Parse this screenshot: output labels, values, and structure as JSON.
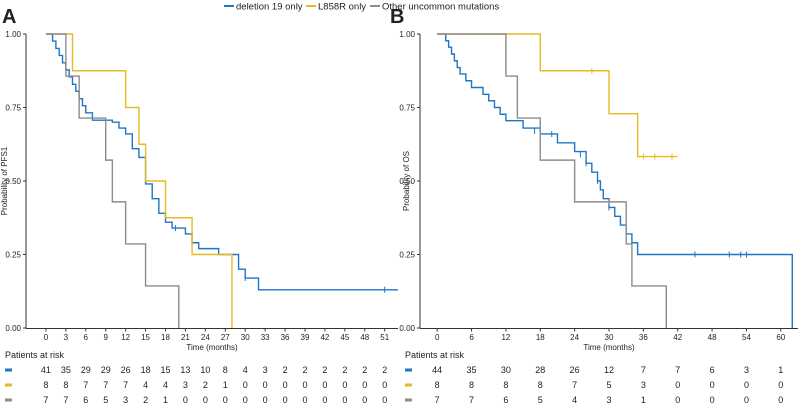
{
  "colors": {
    "deletion19": "#1f77c4",
    "l858r": "#e8b923",
    "other": "#8c8c8c",
    "axis": "#333333",
    "text": "#222222"
  },
  "legend": [
    {
      "label": "deletion 19 only",
      "color": "#1f77c4"
    },
    {
      "label": "L858R only",
      "color": "#e8b923"
    },
    {
      "label": "Other uncommon mutations",
      "color": "#8c8c8c"
    }
  ],
  "chart_data": [
    {
      "panel": "A",
      "type": "line",
      "subtype": "kaplan-meier step",
      "xlabel": "Time (months)",
      "ylabel": "Probability of PFS1",
      "xlim": [
        -3,
        53
      ],
      "ylim": [
        0,
        1
      ],
      "xticks": [
        0,
        3,
        6,
        9,
        12,
        15,
        18,
        21,
        24,
        27,
        30,
        33,
        36,
        39,
        42,
        45,
        48,
        51
      ],
      "yticks": [
        0.0,
        0.25,
        0.5,
        0.75,
        1.0
      ],
      "ytick_labels": [
        "0.00",
        "0.25",
        "0.50",
        "0.75",
        "1.00"
      ],
      "series": [
        {
          "name": "deletion 19 only",
          "color": "#1f77c4",
          "steps": [
            [
              0,
              1.0
            ],
            [
              1,
              0.976
            ],
            [
              1.5,
              0.951
            ],
            [
              2,
              0.927
            ],
            [
              2.5,
              0.902
            ],
            [
              3,
              0.878
            ],
            [
              3.5,
              0.854
            ],
            [
              4,
              0.829
            ],
            [
              4.5,
              0.805
            ],
            [
              5,
              0.78
            ],
            [
              5.5,
              0.756
            ],
            [
              6,
              0.732
            ],
            [
              7,
              0.707
            ],
            [
              10,
              0.7
            ],
            [
              11,
              0.68
            ],
            [
              12,
              0.66
            ],
            [
              13,
              0.61
            ],
            [
              14,
              0.58
            ],
            [
              15,
              0.49
            ],
            [
              16,
              0.44
            ],
            [
              17,
              0.39
            ],
            [
              18,
              0.36
            ],
            [
              19,
              0.34
            ],
            [
              21,
              0.32
            ],
            [
              22,
              0.29
            ],
            [
              23,
              0.27
            ],
            [
              26,
              0.25
            ],
            [
              29,
              0.2
            ],
            [
              30,
              0.17
            ],
            [
              32,
              0.13
            ],
            [
              53,
              0.13
            ]
          ],
          "censor_marks": [
            [
              19.5,
              0.34
            ],
            [
              30,
              0.17
            ],
            [
              51,
              0.13
            ]
          ]
        },
        {
          "name": "L858R only",
          "color": "#e8b923",
          "steps": [
            [
              0,
              1.0
            ],
            [
              4,
              0.875
            ],
            [
              12,
              0.75
            ],
            [
              14,
              0.625
            ],
            [
              15,
              0.5
            ],
            [
              18,
              0.375
            ],
            [
              22,
              0.25
            ],
            [
              28,
              0.0
            ]
          ],
          "censor_marks": []
        },
        {
          "name": "Other uncommon mutations",
          "color": "#8c8c8c",
          "steps": [
            [
              0,
              1.0
            ],
            [
              3,
              0.857
            ],
            [
              5,
              0.714
            ],
            [
              9,
              0.571
            ],
            [
              10,
              0.429
            ],
            [
              12,
              0.286
            ],
            [
              15,
              0.143
            ],
            [
              20,
              0.0
            ]
          ],
          "censor_marks": []
        }
      ],
      "risk_table": {
        "title": "Patients at risk",
        "rows": [
          {
            "color": "#1f77c4",
            "values": [
              41,
              35,
              29,
              29,
              26,
              18,
              15,
              13,
              10,
              8,
              4,
              3,
              2,
              2,
              2,
              2,
              2,
              2
            ]
          },
          {
            "color": "#e8b923",
            "values": [
              8,
              8,
              7,
              7,
              7,
              4,
              4,
              3,
              2,
              1,
              0,
              0,
              0,
              0,
              0,
              0,
              0,
              0
            ]
          },
          {
            "color": "#8c8c8c",
            "values": [
              7,
              7,
              6,
              5,
              3,
              2,
              1,
              0,
              0,
              0,
              0,
              0,
              0,
              0,
              0,
              0,
              0,
              0
            ]
          }
        ]
      }
    },
    {
      "panel": "B",
      "type": "line",
      "subtype": "kaplan-meier step",
      "xlabel": "Time (months)",
      "ylabel": "Probability of OS",
      "xlim": [
        -3,
        63
      ],
      "ylim": [
        0,
        1
      ],
      "xticks": [
        0,
        6,
        12,
        18,
        24,
        30,
        36,
        42,
        48,
        54,
        60
      ],
      "yticks": [
        0.0,
        0.25,
        0.5,
        0.75,
        1.0
      ],
      "ytick_labels": [
        "0.00",
        "0.25",
        "0.50",
        "0.75",
        "1.00"
      ],
      "series": [
        {
          "name": "deletion 19 only",
          "color": "#1f77c4",
          "steps": [
            [
              0,
              1.0
            ],
            [
              1.5,
              0.977
            ],
            [
              2,
              0.955
            ],
            [
              2.5,
              0.932
            ],
            [
              3,
              0.909
            ],
            [
              3.5,
              0.886
            ],
            [
              4,
              0.864
            ],
            [
              5,
              0.841
            ],
            [
              6,
              0.818
            ],
            [
              8,
              0.795
            ],
            [
              9,
              0.773
            ],
            [
              10,
              0.75
            ],
            [
              11,
              0.727
            ],
            [
              12,
              0.705
            ],
            [
              15,
              0.68
            ],
            [
              18,
              0.66
            ],
            [
              21,
              0.63
            ],
            [
              24,
              0.6
            ],
            [
              26,
              0.56
            ],
            [
              27,
              0.53
            ],
            [
              28,
              0.5
            ],
            [
              28.5,
              0.47
            ],
            [
              29,
              0.44
            ],
            [
              30,
              0.41
            ],
            [
              31,
              0.38
            ],
            [
              32,
              0.35
            ],
            [
              33,
              0.32
            ],
            [
              34,
              0.29
            ],
            [
              35,
              0.25
            ],
            [
              62,
              0.25
            ],
            [
              62,
              0.0
            ]
          ],
          "censor_marks": [
            [
              17,
              0.67
            ],
            [
              20,
              0.66
            ],
            [
              25,
              0.59
            ],
            [
              26,
              0.56
            ],
            [
              28,
              0.5
            ],
            [
              30,
              0.41
            ],
            [
              45,
              0.25
            ],
            [
              51,
              0.25
            ],
            [
              53,
              0.25
            ],
            [
              54,
              0.25
            ]
          ]
        },
        {
          "name": "L858R only",
          "color": "#e8b923",
          "steps": [
            [
              0,
              1.0
            ],
            [
              18,
              0.875
            ],
            [
              30,
              0.729
            ],
            [
              35,
              0.583
            ],
            [
              42,
              0.583
            ]
          ],
          "censor_marks": [
            [
              27,
              0.875
            ],
            [
              36,
              0.583
            ],
            [
              38,
              0.583
            ],
            [
              41,
              0.583
            ]
          ]
        },
        {
          "name": "Other uncommon mutations",
          "color": "#8c8c8c",
          "steps": [
            [
              0,
              1.0
            ],
            [
              12,
              0.857
            ],
            [
              14,
              0.714
            ],
            [
              18,
              0.571
            ],
            [
              24,
              0.429
            ],
            [
              33,
              0.286
            ],
            [
              34,
              0.143
            ],
            [
              40,
              0.0
            ]
          ],
          "censor_marks": [
            [
              30,
              0.429
            ]
          ]
        }
      ],
      "risk_table": {
        "title": "Patients at risk",
        "rows": [
          {
            "color": "#1f77c4",
            "values": [
              44,
              35,
              30,
              28,
              26,
              12,
              7,
              7,
              6,
              3,
              1
            ]
          },
          {
            "color": "#e8b923",
            "values": [
              8,
              8,
              8,
              8,
              7,
              5,
              3,
              0,
              0,
              0,
              0
            ]
          },
          {
            "color": "#8c8c8c",
            "values": [
              7,
              7,
              6,
              5,
              4,
              3,
              1,
              0,
              0,
              0,
              0
            ]
          }
        ]
      }
    }
  ]
}
